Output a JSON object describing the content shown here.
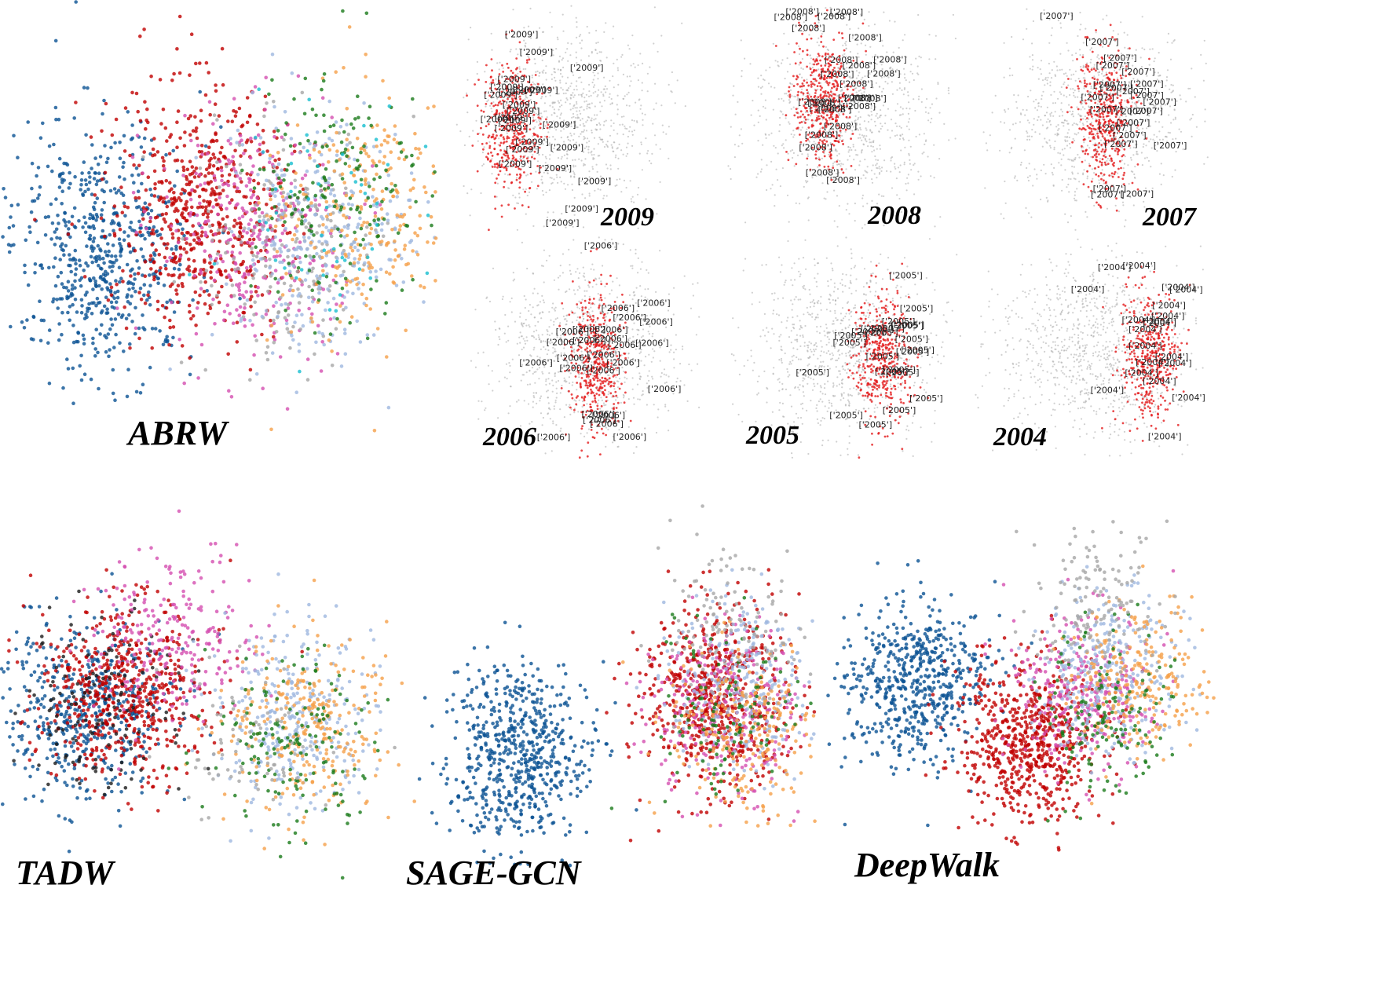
{
  "figure": {
    "description_labels": {
      "abrw": "ABRW",
      "tadw": "TADW",
      "sage": "SAGE-GCN",
      "deepwalk": "DeepWalk"
    },
    "year_captions": [
      "2009",
      "2008",
      "2007",
      "2006",
      "2005",
      "2004"
    ],
    "year_point_labels": [
      "['2009']",
      "['2008']",
      "['2007']",
      "['2006']",
      "['2005']",
      "['2004']"
    ]
  },
  "colors": {
    "blue": "#0b5394",
    "red": "#c00000",
    "magenta": "#d44fb0",
    "grey": "#a6a6a6",
    "lightblue": "#9fb8e0",
    "orange": "#f5a04a",
    "green": "#1a7a1a",
    "cyan": "#17becf",
    "black": "#1a1a1a",
    "highlight_red": "#e31a1c",
    "background_grey": "#b0b0b0"
  },
  "chart_data": [
    {
      "type": "scatter",
      "title": "ABRW",
      "description": "t-SNE embedding, points colored by class",
      "series": [
        {
          "name": "blue",
          "cx": -0.6,
          "cy": 0.15,
          "share": 0.24
        },
        {
          "name": "red",
          "cx": -0.1,
          "cy": -0.05,
          "share": 0.24
        },
        {
          "name": "magenta",
          "cx": 0.15,
          "cy": 0.05,
          "share": 0.13
        },
        {
          "name": "grey",
          "cx": 0.35,
          "cy": 0.15,
          "share": 0.08
        },
        {
          "name": "lightblue",
          "cx": 0.5,
          "cy": 0.1,
          "share": 0.12
        },
        {
          "name": "orange",
          "cx": 0.7,
          "cy": -0.05,
          "share": 0.1
        },
        {
          "name": "green",
          "cx": 0.6,
          "cy": -0.1,
          "share": 0.07
        },
        {
          "name": "cyan",
          "cx": 0.5,
          "cy": 0.0,
          "share": 0.02
        }
      ],
      "xlim": [
        -1,
        1
      ],
      "ylim": [
        -1,
        1
      ]
    },
    {
      "type": "scatter",
      "title": "TADW",
      "series": [
        {
          "name": "blue",
          "cx": -0.65,
          "cy": 0.1,
          "share": 0.22
        },
        {
          "name": "red",
          "cx": -0.45,
          "cy": 0.0,
          "share": 0.26
        },
        {
          "name": "black",
          "cx": -0.55,
          "cy": 0.1,
          "share": 0.06
        },
        {
          "name": "magenta",
          "cx": -0.2,
          "cy": -0.3,
          "share": 0.1
        },
        {
          "name": "lightblue",
          "cx": 0.45,
          "cy": 0.15,
          "share": 0.14
        },
        {
          "name": "orange",
          "cx": 0.55,
          "cy": 0.2,
          "share": 0.12
        },
        {
          "name": "green",
          "cx": 0.45,
          "cy": 0.25,
          "share": 0.07
        },
        {
          "name": "grey",
          "cx": 0.2,
          "cy": 0.3,
          "share": 0.03
        }
      ],
      "xlim": [
        -1,
        1
      ],
      "ylim": [
        -1,
        1
      ]
    },
    {
      "type": "scatter",
      "title": "SAGE-GCN",
      "series": [
        {
          "name": "blue",
          "cx": -0.55,
          "cy": 0.45,
          "share": 0.28
        },
        {
          "name": "red",
          "cx": 0.55,
          "cy": 0.1,
          "share": 0.28
        },
        {
          "name": "magenta",
          "cx": 0.6,
          "cy": 0.2,
          "share": 0.12
        },
        {
          "name": "lightblue",
          "cx": 0.7,
          "cy": 0.0,
          "share": 0.12
        },
        {
          "name": "orange",
          "cx": 0.7,
          "cy": 0.3,
          "share": 0.1
        },
        {
          "name": "green",
          "cx": 0.65,
          "cy": 0.2,
          "share": 0.05
        },
        {
          "name": "grey",
          "cx": 0.6,
          "cy": -0.3,
          "share": 0.05
        }
      ],
      "xlim": [
        -1,
        1
      ],
      "ylim": [
        -1,
        1
      ]
    },
    {
      "type": "scatter",
      "title": "DeepWalk",
      "series": [
        {
          "name": "blue",
          "cx": -0.6,
          "cy": -0.05,
          "share": 0.24
        },
        {
          "name": "red",
          "cx": 0.05,
          "cy": 0.3,
          "share": 0.28
        },
        {
          "name": "magenta",
          "cx": 0.35,
          "cy": 0.0,
          "share": 0.13
        },
        {
          "name": "lightblue",
          "cx": 0.5,
          "cy": -0.1,
          "share": 0.13
        },
        {
          "name": "orange",
          "cx": 0.65,
          "cy": -0.05,
          "share": 0.1
        },
        {
          "name": "green",
          "cx": 0.45,
          "cy": 0.1,
          "share": 0.06
        },
        {
          "name": "grey",
          "cx": 0.45,
          "cy": -0.55,
          "share": 0.06
        }
      ],
      "xlim": [
        -1,
        1
      ],
      "ylim": [
        -1,
        1
      ]
    },
    {
      "type": "scatter",
      "title": "2009",
      "highlight_label": "['2009']",
      "highlight_region": {
        "cx": -0.55,
        "cy": 0.1
      }
    },
    {
      "type": "scatter",
      "title": "2008",
      "highlight_label": "['2008']",
      "highlight_region": {
        "cx": -0.2,
        "cy": -0.2
      }
    },
    {
      "type": "scatter",
      "title": "2007",
      "highlight_label": "['2007']",
      "highlight_region": {
        "cx": 0.1,
        "cy": 0.0
      }
    },
    {
      "type": "scatter",
      "title": "2006",
      "highlight_label": "['2006']",
      "highlight_region": {
        "cx": 0.1,
        "cy": 0.15
      }
    },
    {
      "type": "scatter",
      "title": "2005",
      "highlight_label": "['2005']",
      "highlight_region": {
        "cx": 0.35,
        "cy": 0.1
      }
    },
    {
      "type": "scatter",
      "title": "2004",
      "highlight_label": "['2004']",
      "highlight_region": {
        "cx": 0.55,
        "cy": 0.1
      }
    }
  ]
}
